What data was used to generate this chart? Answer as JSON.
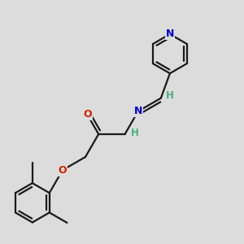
{
  "bg_color": "#dcdcdc",
  "atom_colors": {
    "N": "#0000cc",
    "O": "#cc2200",
    "H_imine": "#4caf7d",
    "H_nh": "#4caf7d"
  },
  "bond_color": "#1a1a1a",
  "bond_width": 1.6,
  "figsize": [
    3.0,
    3.0
  ],
  "dpi": 100,
  "xlim": [
    0,
    10
  ],
  "ylim": [
    0,
    10
  ]
}
